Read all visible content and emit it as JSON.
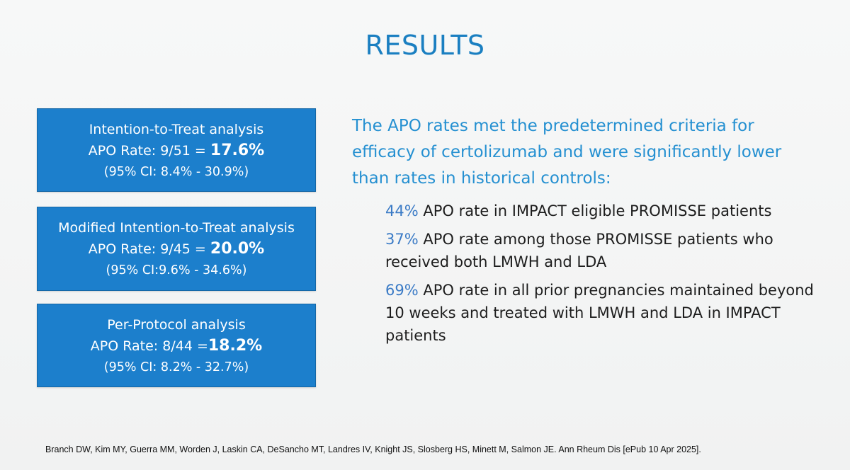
{
  "slide": {
    "title": "RESULTS",
    "analyses": [
      {
        "name": "Intention-to-Treat analysis",
        "rate_prefix": "APO Rate: 9/51 = ",
        "rate_value": "17.6%",
        "ci": "(95% CI: 8.4% - 30.9%)"
      },
      {
        "name": "Modified Intention-to-Treat analysis",
        "rate_prefix": "APO Rate: 9/45 = ",
        "rate_value": "20.0%",
        "ci": "(95% CI:9.6% - 34.6%)"
      },
      {
        "name": "Per-Protocol analysis",
        "rate_prefix": "APO Rate: 8/44 =",
        "rate_value": "18.2%",
        "ci": "(95% CI: 8.2% - 32.7%)"
      }
    ],
    "headline": "The APO rates met the predetermined criteria for efficacy of certolizumab and were significantly lower than rates in historical controls:",
    "points": [
      {
        "pct": "44%",
        "text": " APO rate in IMPACT eligible PROMISSE patients"
      },
      {
        "pct": "37%",
        "text": " APO rate among those PROMISSE patients who received both LMWH and LDA"
      },
      {
        "pct": "69%",
        "text": " APO rate in all prior pregnancies maintained beyond 10 weeks and treated with LMWH and LDA in IMPACT patients"
      }
    ],
    "citation": "Branch DW, Kim MY, Guerra MM, Worden J, Laskin CA, DeSancho MT, Landres IV, Knight JS, Slosberg HS, Minett M, Salmon JE. Ann Rheum Dis  [ePub 10 Apr 2025]."
  }
}
